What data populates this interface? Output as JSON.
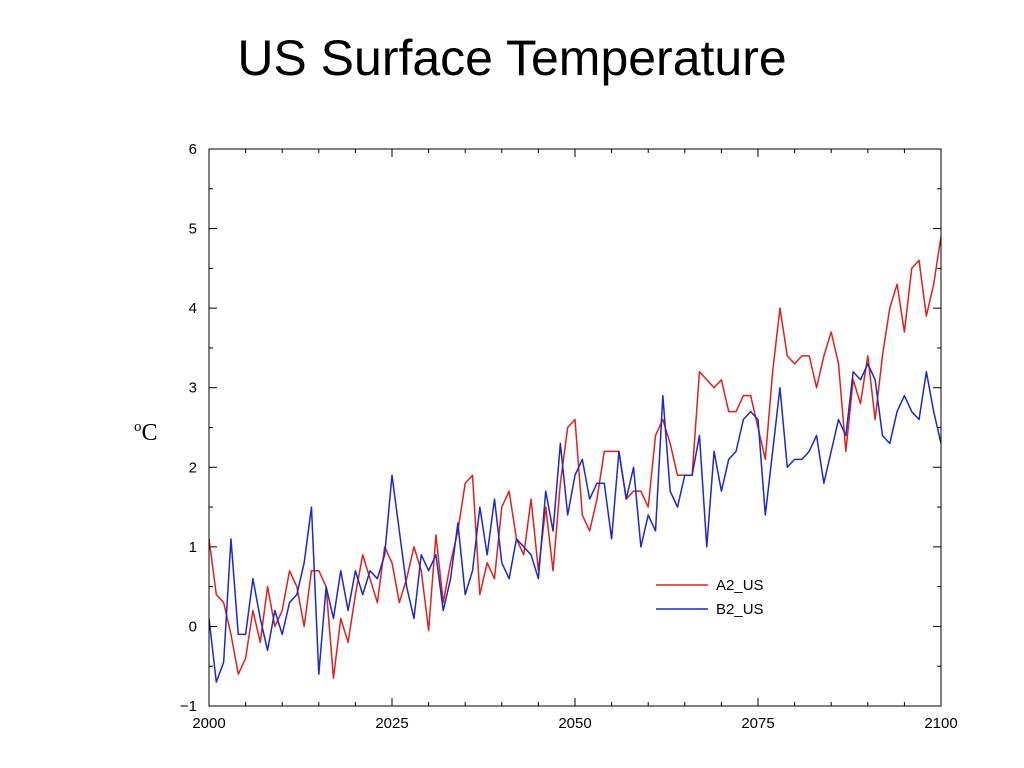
{
  "slide": {
    "title": "US Surface Temperature"
  },
  "chart_data": {
    "type": "line",
    "title": "",
    "xlabel": "",
    "ylabel_superscript": "o",
    "ylabel_unit": "C",
    "xlim": [
      2000,
      2100
    ],
    "ylim": [
      -1,
      6
    ],
    "xticks": [
      2000,
      2025,
      2050,
      2075,
      2100
    ],
    "yticks": [
      -1,
      0,
      1,
      2,
      3,
      4,
      5,
      6
    ],
    "grid": false,
    "legend_position": "lower-right",
    "x": [
      2000,
      2001,
      2002,
      2003,
      2004,
      2005,
      2006,
      2007,
      2008,
      2009,
      2010,
      2011,
      2012,
      2013,
      2014,
      2015,
      2016,
      2017,
      2018,
      2019,
      2020,
      2021,
      2022,
      2023,
      2024,
      2025,
      2026,
      2027,
      2028,
      2029,
      2030,
      2031,
      2032,
      2033,
      2034,
      2035,
      2036,
      2037,
      2038,
      2039,
      2040,
      2041,
      2042,
      2043,
      2044,
      2045,
      2046,
      2047,
      2048,
      2049,
      2050,
      2051,
      2052,
      2053,
      2054,
      2055,
      2056,
      2057,
      2058,
      2059,
      2060,
      2061,
      2062,
      2063,
      2064,
      2065,
      2066,
      2067,
      2068,
      2069,
      2070,
      2071,
      2072,
      2073,
      2074,
      2075,
      2076,
      2077,
      2078,
      2079,
      2080,
      2081,
      2082,
      2083,
      2084,
      2085,
      2086,
      2087,
      2088,
      2089,
      2090,
      2091,
      2092,
      2093,
      2094,
      2095,
      2096,
      2097,
      2098,
      2099,
      2100
    ],
    "series": [
      {
        "name": "A2_US",
        "color": "#e0201c",
        "values": [
          1.1,
          0.4,
          0.3,
          -0.1,
          -0.6,
          -0.4,
          0.2,
          -0.2,
          0.5,
          0.0,
          0.2,
          0.7,
          0.5,
          0.0,
          0.7,
          0.7,
          0.5,
          -0.65,
          0.1,
          -0.2,
          0.4,
          0.9,
          0.6,
          0.3,
          1.0,
          0.8,
          0.3,
          0.6,
          1.0,
          0.7,
          -0.05,
          1.15,
          0.3,
          0.8,
          1.2,
          1.8,
          1.9,
          0.4,
          0.8,
          0.6,
          1.5,
          1.7,
          1.1,
          0.9,
          1.6,
          0.7,
          1.5,
          0.7,
          1.8,
          2.5,
          2.6,
          1.4,
          1.2,
          1.6,
          2.2,
          2.2,
          2.2,
          1.6,
          1.7,
          1.7,
          1.5,
          2.4,
          2.6,
          2.3,
          1.9,
          1.9,
          1.9,
          3.2,
          3.1,
          3.0,
          3.1,
          2.7,
          2.7,
          2.9,
          2.9,
          2.5,
          2.1,
          3.2,
          4.0,
          3.4,
          3.3,
          3.4,
          3.4,
          3.0,
          3.4,
          3.7,
          3.3,
          2.2,
          3.1,
          2.8,
          3.4,
          2.6,
          3.4,
          4.0,
          4.3,
          3.7,
          4.5,
          4.6,
          3.9,
          4.3,
          4.9
        ]
      },
      {
        "name": "B2_US",
        "color": "#1c28c8",
        "values": [
          0.1,
          -0.7,
          -0.45,
          1.1,
          -0.1,
          -0.1,
          0.6,
          0.1,
          -0.3,
          0.2,
          -0.1,
          0.3,
          0.4,
          0.8,
          1.5,
          -0.6,
          0.5,
          0.1,
          0.7,
          0.2,
          0.7,
          0.4,
          0.7,
          0.6,
          0.9,
          1.9,
          1.2,
          0.5,
          0.1,
          0.9,
          0.7,
          0.9,
          0.2,
          0.6,
          1.3,
          0.4,
          0.7,
          1.5,
          0.9,
          1.6,
          0.8,
          0.6,
          1.1,
          1.0,
          0.9,
          0.6,
          1.7,
          1.2,
          2.3,
          1.4,
          1.9,
          2.1,
          1.6,
          1.8,
          1.8,
          1.1,
          2.2,
          1.6,
          2.0,
          1.0,
          1.4,
          1.2,
          2.9,
          1.7,
          1.5,
          1.9,
          1.9,
          2.4,
          1.0,
          2.2,
          1.7,
          2.1,
          2.2,
          2.6,
          2.7,
          2.6,
          1.4,
          2.2,
          3.0,
          2.0,
          2.1,
          2.1,
          2.2,
          2.4,
          1.8,
          2.2,
          2.6,
          2.4,
          3.2,
          3.1,
          3.3,
          3.1,
          2.4,
          2.3,
          2.7,
          2.9,
          2.7,
          2.6,
          3.2,
          2.7,
          2.3
        ]
      }
    ]
  }
}
